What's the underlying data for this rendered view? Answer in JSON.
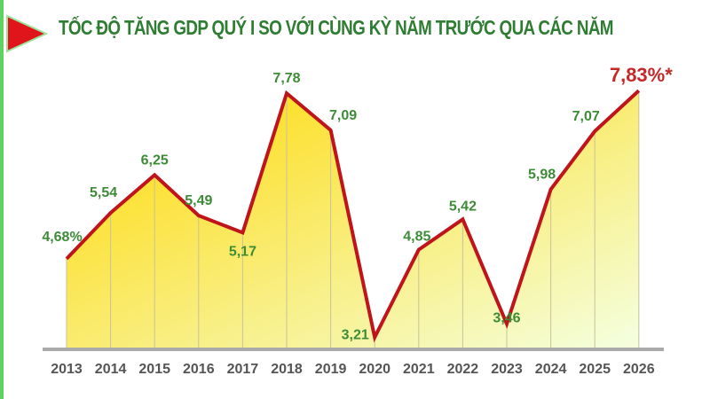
{
  "title": "TỐC ĐỘ TĂNG GDP QUÝ I SO VỚI CÙNG KỲ NĂM TRƯỚC QUA CÁC NĂM",
  "colors": {
    "line": "#c0141c",
    "fill_top": "#ffd800",
    "fill_bottom": "#f4ffe0",
    "label": "#3d8b37",
    "highlight": "#c62828",
    "border": "#5fd35f",
    "arrow": "#e0151b"
  },
  "chart_data": {
    "type": "area",
    "title": "TỐC ĐỘ TĂNG GDP QUÝ I SO VỚI CÙNG KỲ NĂM TRƯỚC QUA CÁC NĂM",
    "categories": [
      "2013",
      "2014",
      "2015",
      "2016",
      "2017",
      "2018",
      "2019",
      "2020",
      "2021",
      "2022",
      "2023",
      "2024",
      "2025",
      "2026"
    ],
    "values": [
      4.68,
      5.54,
      6.25,
      5.49,
      5.17,
      7.78,
      7.09,
      3.21,
      4.85,
      5.42,
      3.46,
      5.98,
      7.07,
      7.83
    ],
    "data_labels": [
      "4,68%",
      "5,54",
      "6,25",
      "5,49",
      "5,17",
      "7,78",
      "7,09",
      "3,21",
      "4,85",
      "5,42",
      "3,46",
      "5,98",
      "7,07",
      "7,83%*"
    ],
    "xlabel": "",
    "ylabel": "",
    "ylim": [
      3.0,
      8.0
    ],
    "grid": "vertical",
    "legend": "none"
  }
}
